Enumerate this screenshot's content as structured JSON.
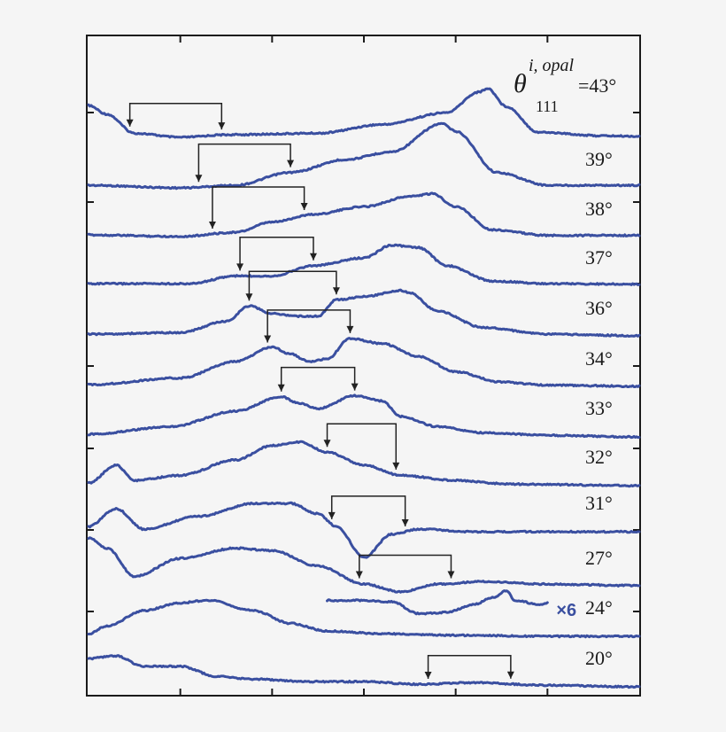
{
  "chart_data": {
    "type": "line",
    "title": "",
    "xlabel": "",
    "ylabel": "",
    "colors": {
      "trace": "#3a4fa0",
      "frame": "#1a1a1a",
      "bracket": "#222222"
    },
    "annotation": {
      "symbol": "θ",
      "superscript": "i, opal",
      "subscript": "111",
      "equals": "=43°"
    },
    "series": [
      {
        "name": "43°",
        "label": "",
        "points": [
          [
            0,
            0.62
          ],
          [
            0.2,
            0.45
          ],
          [
            0.5,
            0.08
          ],
          [
            1.0,
            0.0
          ],
          [
            1.5,
            0.05
          ],
          [
            2.5,
            0.08
          ],
          [
            3.2,
            0.25
          ],
          [
            3.9,
            0.48
          ],
          [
            4.25,
            0.88
          ],
          [
            4.35,
            0.95
          ],
          [
            4.55,
            0.6
          ],
          [
            4.9,
            0.1
          ],
          [
            5.6,
            0.03
          ],
          [
            6,
            0.02
          ]
        ],
        "brackets": [
          [
            0.45,
            1.45
          ]
        ]
      },
      {
        "name": "39°",
        "label": "39°",
        "points": [
          [
            0,
            0.05
          ],
          [
            1.0,
            0.0
          ],
          [
            1.6,
            0.05
          ],
          [
            2.2,
            0.3
          ],
          [
            2.8,
            0.55
          ],
          [
            3.3,
            0.7
          ],
          [
            3.85,
            1.25
          ],
          [
            4.0,
            1.1
          ],
          [
            4.45,
            0.3
          ],
          [
            5.0,
            0.05
          ],
          [
            6,
            0.05
          ]
        ],
        "brackets": [
          [
            1.2,
            2.2
          ]
        ]
      },
      {
        "name": "38°",
        "label": "38°",
        "points": [
          [
            0,
            0.05
          ],
          [
            1.0,
            0.02
          ],
          [
            1.6,
            0.1
          ],
          [
            2.0,
            0.3
          ],
          [
            2.45,
            0.45
          ],
          [
            3.0,
            0.6
          ],
          [
            3.5,
            0.8
          ],
          [
            3.75,
            0.85
          ],
          [
            4.0,
            0.6
          ],
          [
            4.4,
            0.15
          ],
          [
            5.0,
            0.04
          ],
          [
            6,
            0.04
          ]
        ],
        "brackets": [
          [
            1.35,
            2.35
          ]
        ]
      },
      {
        "name": "37°",
        "label": "37°",
        "points": [
          [
            0,
            0.05
          ],
          [
            1.1,
            0.05
          ],
          [
            1.6,
            0.2
          ],
          [
            2.0,
            0.2
          ],
          [
            2.45,
            0.4
          ],
          [
            3.0,
            0.55
          ],
          [
            3.3,
            0.8
          ],
          [
            3.6,
            0.75
          ],
          [
            3.9,
            0.4
          ],
          [
            4.4,
            0.1
          ],
          [
            5.0,
            0.05
          ],
          [
            6,
            0.04
          ]
        ],
        "brackets": [
          [
            1.65,
            2.45
          ]
        ]
      },
      {
        "name": "36°",
        "label": "36°",
        "points": [
          [
            0,
            0.05
          ],
          [
            1.0,
            0.08
          ],
          [
            1.5,
            0.3
          ],
          [
            1.75,
            0.6
          ],
          [
            2.0,
            0.45
          ],
          [
            2.3,
            0.4
          ],
          [
            2.5,
            0.4
          ],
          [
            2.7,
            0.72
          ],
          [
            3.0,
            0.78
          ],
          [
            3.4,
            0.9
          ],
          [
            3.5,
            0.85
          ],
          [
            3.8,
            0.5
          ],
          [
            4.3,
            0.18
          ],
          [
            5.0,
            0.05
          ],
          [
            6,
            0.02
          ]
        ],
        "brackets": [
          [
            1.75,
            2.7
          ]
        ]
      },
      {
        "name": "34°",
        "label": "34°",
        "points": [
          [
            0,
            0.05
          ],
          [
            1.0,
            0.18
          ],
          [
            1.6,
            0.5
          ],
          [
            2.0,
            0.78
          ],
          [
            2.2,
            0.65
          ],
          [
            2.4,
            0.5
          ],
          [
            2.6,
            0.55
          ],
          [
            2.85,
            0.95
          ],
          [
            3.2,
            0.85
          ],
          [
            3.6,
            0.6
          ],
          [
            4.0,
            0.3
          ],
          [
            4.5,
            0.1
          ],
          [
            5.0,
            0.04
          ],
          [
            6,
            0.02
          ]
        ],
        "brackets": [
          [
            1.95,
            2.85
          ]
        ]
      },
      {
        "name": "33°",
        "label": "33°",
        "points": [
          [
            0,
            0.05
          ],
          [
            0.9,
            0.2
          ],
          [
            1.6,
            0.5
          ],
          [
            2.1,
            0.78
          ],
          [
            2.3,
            0.65
          ],
          [
            2.5,
            0.55
          ],
          [
            2.9,
            0.8
          ],
          [
            3.2,
            0.7
          ],
          [
            3.4,
            0.4
          ],
          [
            3.8,
            0.2
          ],
          [
            4.3,
            0.08
          ],
          [
            5.0,
            0.03
          ],
          [
            6,
            0.0
          ]
        ],
        "brackets": [
          [
            2.1,
            2.9
          ]
        ]
      },
      {
        "name": "32°",
        "label": "32°",
        "points": [
          [
            0,
            0.05
          ],
          [
            0.3,
            0.4
          ],
          [
            0.5,
            0.1
          ],
          [
            1.0,
            0.2
          ],
          [
            1.6,
            0.5
          ],
          [
            2.0,
            0.78
          ],
          [
            2.3,
            0.85
          ],
          [
            2.6,
            0.65
          ],
          [
            3.0,
            0.4
          ],
          [
            3.4,
            0.2
          ],
          [
            4.0,
            0.1
          ],
          [
            4.6,
            0.03
          ],
          [
            6,
            0.0
          ]
        ],
        "brackets": [
          [
            2.6,
            3.35
          ]
        ]
      },
      {
        "name": "31°",
        "label": "31°",
        "points": [
          [
            0,
            0.1
          ],
          [
            0.3,
            0.45
          ],
          [
            0.6,
            0.05
          ],
          [
            1.2,
            0.3
          ],
          [
            1.8,
            0.55
          ],
          [
            2.2,
            0.55
          ],
          [
            2.5,
            0.35
          ],
          [
            2.7,
            0.1
          ],
          [
            3.0,
            -0.5
          ],
          [
            3.3,
            -0.05
          ],
          [
            3.6,
            0.05
          ],
          [
            4.2,
            0.0
          ],
          [
            6,
            0.0
          ]
        ],
        "brackets": [
          [
            2.65,
            3.45
          ]
        ]
      },
      {
        "name": "27°",
        "label": "27°",
        "points": [
          [
            0,
            0.95
          ],
          [
            0.2,
            0.75
          ],
          [
            0.5,
            0.2
          ],
          [
            1.0,
            0.55
          ],
          [
            1.6,
            0.75
          ],
          [
            2.0,
            0.7
          ],
          [
            2.5,
            0.4
          ],
          [
            3.0,
            0.05
          ],
          [
            3.4,
            -0.1
          ],
          [
            3.8,
            0.05
          ],
          [
            4.3,
            0.1
          ],
          [
            5.0,
            0.05
          ],
          [
            6,
            0.02
          ]
        ],
        "brackets": [
          [
            2.95,
            3.95
          ]
        ]
      },
      {
        "name": "24°",
        "label": "24°",
        "points": [
          [
            0,
            0.05
          ],
          [
            0.2,
            0.2
          ],
          [
            0.6,
            0.5
          ],
          [
            1.0,
            0.65
          ],
          [
            1.3,
            0.7
          ],
          [
            1.8,
            0.5
          ],
          [
            2.2,
            0.25
          ],
          [
            2.6,
            0.1
          ],
          [
            3.2,
            0.05
          ],
          [
            4.0,
            0.02
          ],
          [
            5.0,
            0.0
          ],
          [
            6,
            0.0
          ]
        ],
        "brackets": []
      },
      {
        "name": "24° ×6",
        "label": "×6",
        "points": [
          [
            2.6,
            0.35
          ],
          [
            3.0,
            0.35
          ],
          [
            3.3,
            0.3
          ],
          [
            3.6,
            -0.15
          ],
          [
            3.9,
            -0.1
          ],
          [
            4.2,
            0.2
          ],
          [
            4.4,
            0.45
          ],
          [
            4.55,
            0.7
          ],
          [
            4.65,
            0.35
          ],
          [
            4.9,
            0.2
          ],
          [
            5.0,
            0.25
          ]
        ],
        "brackets": []
      },
      {
        "name": "20°",
        "label": "20°",
        "points": [
          [
            0,
            0.55
          ],
          [
            0.3,
            0.6
          ],
          [
            0.6,
            0.4
          ],
          [
            1.0,
            0.4
          ],
          [
            1.4,
            0.2
          ],
          [
            1.8,
            0.15
          ],
          [
            2.4,
            0.1
          ],
          [
            3.0,
            0.1
          ],
          [
            3.6,
            0.05
          ],
          [
            4.2,
            0.08
          ],
          [
            5.0,
            0.03
          ],
          [
            6,
            0.0
          ]
        ],
        "brackets": [
          [
            3.7,
            4.6
          ]
        ]
      }
    ]
  }
}
